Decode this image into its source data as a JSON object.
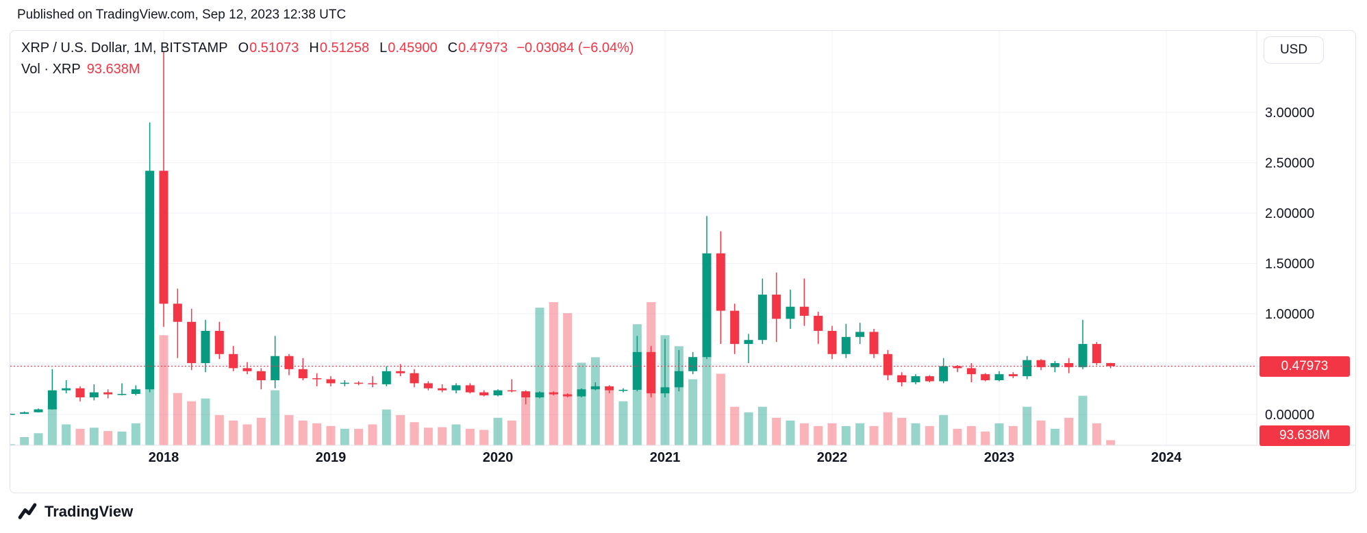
{
  "published": {
    "text": "Published on TradingView.com, Sep 12, 2023 12:38 UTC"
  },
  "header": {
    "symbol_title": "XRP / U.S. Dollar, 1M, BITSTAMP",
    "o_label": "O",
    "o_value": "0.51073",
    "h_label": "H",
    "h_value": "0.51258",
    "l_label": "L",
    "l_value": "0.45900",
    "c_label": "C",
    "c_value": "0.47973",
    "change": "−0.03084 (−6.04%)",
    "vol_label": "Vol · XRP",
    "vol_value": "93.638M"
  },
  "price_scale": {
    "currency_label": "USD",
    "price_badge": "0.47973",
    "volume_badge": "93.638M"
  },
  "footer": {
    "brand": "TradingView"
  },
  "colors": {
    "up": "#089981",
    "down": "#F23645",
    "vol_up": "rgba(8,153,129,0.42)",
    "vol_down": "rgba(242,54,69,0.38)",
    "grid": "#f0f3fa",
    "border": "#e0e3eb",
    "axis_text": "#131722",
    "last_line": "#F23645"
  },
  "chart_data": {
    "type": "candlestick_with_volume",
    "title": "XRP / U.S. Dollar",
    "interval": "1M",
    "exchange": "BITSTAMP",
    "currency": "USD",
    "last_price": 0.47973,
    "last_volume_label": "93.638M",
    "ylim": [
      0,
      3.8
    ],
    "volume_max_m": 2800,
    "grid_prices": [
      3.0,
      2.5,
      2.0,
      1.5,
      1.0,
      0.5,
      0.0
    ],
    "price_ticks": [
      {
        "value": 3.0,
        "label": "3.00000"
      },
      {
        "value": 2.5,
        "label": "2.50000"
      },
      {
        "value": 2.0,
        "label": "2.00000"
      },
      {
        "value": 1.5,
        "label": "1.50000"
      },
      {
        "value": 1.0,
        "label": "1.00000"
      },
      {
        "value": 0.0,
        "label": "0.00000"
      }
    ],
    "years": [
      "2018",
      "2019",
      "2020",
      "2021",
      "2022",
      "2023",
      "2024"
    ],
    "months": [
      "2017-02",
      "2017-03",
      "2017-04",
      "2017-05",
      "2017-06",
      "2017-07",
      "2017-08",
      "2017-09",
      "2017-10",
      "2017-11",
      "2017-12",
      "2018-01",
      "2018-02",
      "2018-03",
      "2018-04",
      "2018-05",
      "2018-06",
      "2018-07",
      "2018-08",
      "2018-09",
      "2018-10",
      "2018-11",
      "2018-12",
      "2019-01",
      "2019-02",
      "2019-03",
      "2019-04",
      "2019-05",
      "2019-06",
      "2019-07",
      "2019-08",
      "2019-09",
      "2019-10",
      "2019-11",
      "2019-12",
      "2020-01",
      "2020-02",
      "2020-03",
      "2020-04",
      "2020-05",
      "2020-06",
      "2020-07",
      "2020-08",
      "2020-09",
      "2020-10",
      "2020-11",
      "2020-12",
      "2021-01",
      "2021-02",
      "2021-03",
      "2021-04",
      "2021-05",
      "2021-06",
      "2021-07",
      "2021-08",
      "2021-09",
      "2021-10",
      "2021-11",
      "2021-12",
      "2022-01",
      "2022-02",
      "2022-03",
      "2022-04",
      "2022-05",
      "2022-06",
      "2022-07",
      "2022-08",
      "2022-09",
      "2022-10",
      "2022-11",
      "2022-12",
      "2023-01",
      "2023-02",
      "2023-03",
      "2023-04",
      "2023-05",
      "2023-06",
      "2023-07",
      "2023-08",
      "2023-09"
    ],
    "ohlc": [
      [
        0.006,
        0.009,
        0.005,
        0.006
      ],
      [
        0.006,
        0.03,
        0.006,
        0.022
      ],
      [
        0.022,
        0.06,
        0.02,
        0.051
      ],
      [
        0.051,
        0.45,
        0.048,
        0.24
      ],
      [
        0.24,
        0.34,
        0.21,
        0.26
      ],
      [
        0.26,
        0.28,
        0.13,
        0.17
      ],
      [
        0.17,
        0.3,
        0.14,
        0.22
      ],
      [
        0.22,
        0.25,
        0.16,
        0.2
      ],
      [
        0.2,
        0.31,
        0.19,
        0.204
      ],
      [
        0.204,
        0.29,
        0.19,
        0.25
      ],
      [
        0.25,
        2.9,
        0.22,
        2.42
      ],
      [
        2.42,
        3.6,
        0.87,
        1.1
      ],
      [
        1.1,
        1.25,
        0.56,
        0.92
      ],
      [
        0.92,
        1.05,
        0.44,
        0.51
      ],
      [
        0.51,
        0.94,
        0.42,
        0.83
      ],
      [
        0.83,
        0.92,
        0.55,
        0.6
      ],
      [
        0.6,
        0.68,
        0.43,
        0.46
      ],
      [
        0.46,
        0.52,
        0.4,
        0.43
      ],
      [
        0.43,
        0.46,
        0.25,
        0.34
      ],
      [
        0.34,
        0.78,
        0.26,
        0.58
      ],
      [
        0.58,
        0.6,
        0.39,
        0.45
      ],
      [
        0.45,
        0.56,
        0.34,
        0.36
      ],
      [
        0.36,
        0.41,
        0.28,
        0.35
      ],
      [
        0.35,
        0.38,
        0.28,
        0.31
      ],
      [
        0.31,
        0.34,
        0.28,
        0.315
      ],
      [
        0.315,
        0.33,
        0.29,
        0.31
      ],
      [
        0.31,
        0.38,
        0.27,
        0.3
      ],
      [
        0.3,
        0.48,
        0.28,
        0.43
      ],
      [
        0.43,
        0.5,
        0.38,
        0.41
      ],
      [
        0.41,
        0.45,
        0.27,
        0.31
      ],
      [
        0.31,
        0.33,
        0.24,
        0.26
      ],
      [
        0.26,
        0.3,
        0.22,
        0.24
      ],
      [
        0.24,
        0.31,
        0.21,
        0.29
      ],
      [
        0.29,
        0.31,
        0.21,
        0.22
      ],
      [
        0.22,
        0.24,
        0.18,
        0.19
      ],
      [
        0.19,
        0.25,
        0.18,
        0.24
      ],
      [
        0.24,
        0.35,
        0.22,
        0.23
      ],
      [
        0.23,
        0.24,
        0.1,
        0.17
      ],
      [
        0.17,
        0.23,
        0.16,
        0.22
      ],
      [
        0.22,
        0.23,
        0.19,
        0.2
      ],
      [
        0.2,
        0.21,
        0.17,
        0.18
      ],
      [
        0.18,
        0.26,
        0.17,
        0.25
      ],
      [
        0.25,
        0.32,
        0.24,
        0.28
      ],
      [
        0.28,
        0.29,
        0.21,
        0.24
      ],
      [
        0.24,
        0.26,
        0.22,
        0.245
      ],
      [
        0.245,
        0.78,
        0.23,
        0.62
      ],
      [
        0.62,
        0.68,
        0.17,
        0.21
      ],
      [
        0.21,
        0.75,
        0.17,
        0.27
      ],
      [
        0.27,
        0.64,
        0.23,
        0.43
      ],
      [
        0.43,
        0.62,
        0.4,
        0.57
      ],
      [
        0.57,
        1.97,
        0.55,
        1.6
      ],
      [
        1.6,
        1.82,
        0.7,
        1.03
      ],
      [
        1.03,
        1.1,
        0.6,
        0.7
      ],
      [
        0.7,
        0.8,
        0.51,
        0.74
      ],
      [
        0.74,
        1.35,
        0.7,
        1.19
      ],
      [
        1.19,
        1.41,
        0.72,
        0.95
      ],
      [
        0.95,
        1.24,
        0.85,
        1.07
      ],
      [
        1.07,
        1.35,
        0.88,
        0.98
      ],
      [
        0.98,
        1.02,
        0.7,
        0.83
      ],
      [
        0.83,
        0.88,
        0.55,
        0.6
      ],
      [
        0.6,
        0.9,
        0.56,
        0.77
      ],
      [
        0.77,
        0.91,
        0.7,
        0.82
      ],
      [
        0.82,
        0.85,
        0.56,
        0.6
      ],
      [
        0.6,
        0.64,
        0.34,
        0.39
      ],
      [
        0.39,
        0.42,
        0.28,
        0.32
      ],
      [
        0.32,
        0.4,
        0.3,
        0.38
      ],
      [
        0.38,
        0.39,
        0.32,
        0.33
      ],
      [
        0.33,
        0.56,
        0.31,
        0.48
      ],
      [
        0.48,
        0.49,
        0.42,
        0.46
      ],
      [
        0.46,
        0.51,
        0.32,
        0.4
      ],
      [
        0.4,
        0.41,
        0.33,
        0.34
      ],
      [
        0.34,
        0.43,
        0.33,
        0.4
      ],
      [
        0.4,
        0.42,
        0.36,
        0.38
      ],
      [
        0.38,
        0.58,
        0.35,
        0.54
      ],
      [
        0.54,
        0.55,
        0.44,
        0.47
      ],
      [
        0.47,
        0.53,
        0.42,
        0.51
      ],
      [
        0.51,
        0.56,
        0.41,
        0.47
      ],
      [
        0.47,
        0.94,
        0.45,
        0.7
      ],
      [
        0.7,
        0.72,
        0.49,
        0.51
      ],
      [
        0.51073,
        0.51258,
        0.459,
        0.47973
      ]
    ],
    "volume_m": [
      20,
      150,
      220,
      700,
      380,
      300,
      320,
      260,
      250,
      400,
      2300,
      2000,
      950,
      800,
      850,
      550,
      450,
      380,
      500,
      1000,
      550,
      450,
      400,
      350,
      300,
      300,
      380,
      650,
      550,
      420,
      320,
      330,
      380,
      300,
      280,
      500,
      450,
      900,
      2500,
      2600,
      2400,
      1500,
      1600,
      1000,
      800,
      2200,
      2600,
      2000,
      1800,
      1200,
      2100,
      1300,
      700,
      600,
      700,
      500,
      450,
      400,
      350,
      400,
      350,
      400,
      350,
      600,
      500,
      400,
      350,
      550,
      300,
      350,
      250,
      400,
      350,
      700,
      450,
      300,
      500,
      900,
      400,
      93.638
    ]
  }
}
